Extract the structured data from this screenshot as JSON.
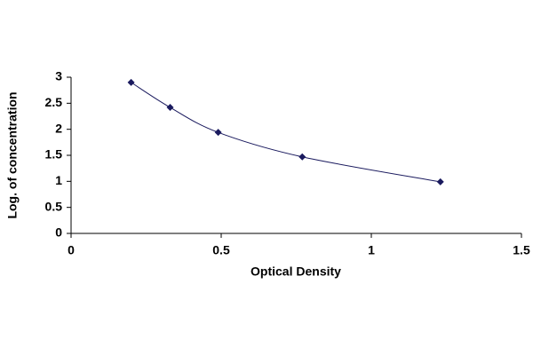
{
  "chart_data": {
    "type": "scatter",
    "line": "smooth",
    "color": "#1a1a5e",
    "x": [
      0.2,
      0.33,
      0.49,
      0.77,
      1.23
    ],
    "values": [
      2.9,
      2.42,
      1.94,
      1.47,
      0.99
    ],
    "xlabel": "Optical Density",
    "ylabel": "Log. of concentration",
    "xlim": [
      0,
      1.5
    ],
    "ylim": [
      0,
      3
    ],
    "xticks": [
      0,
      0.5,
      1,
      1.5
    ],
    "yticks": [
      0,
      0.5,
      1,
      1.5,
      2,
      2.5,
      3
    ],
    "grid": false
  }
}
